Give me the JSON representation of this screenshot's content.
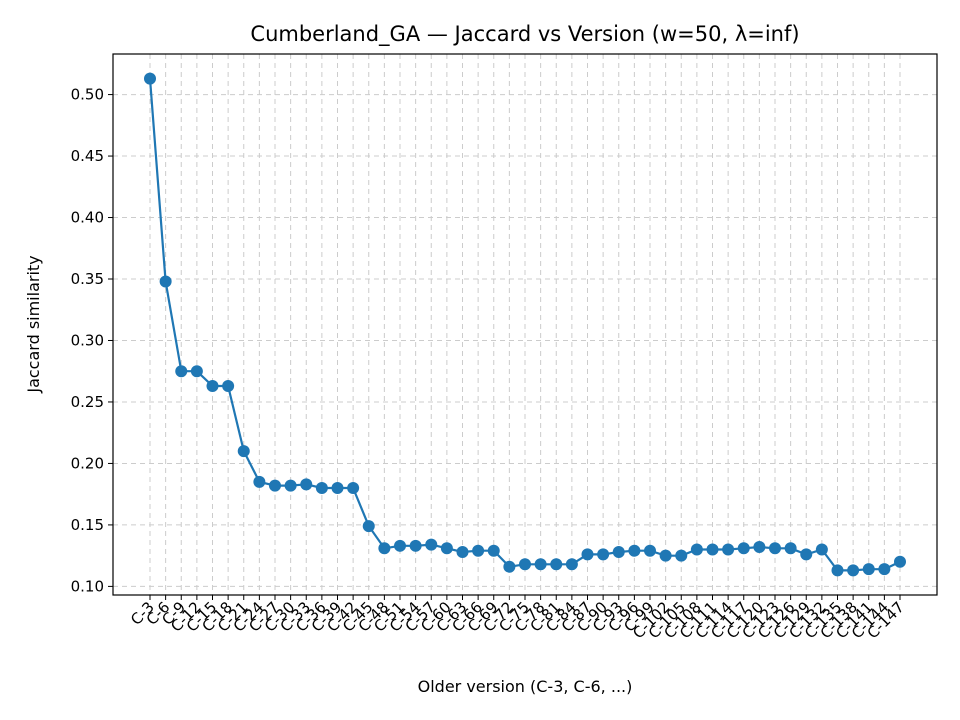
{
  "chart_data": {
    "type": "line",
    "title": "Cumberland_GA — Jaccard vs Version (w=50, λ=inf)",
    "xlabel": "Older version (C-3, C-6, ...)",
    "ylabel": "Jaccard similarity",
    "ylim": [
      0.093,
      0.533
    ],
    "yticks": [
      0.1,
      0.15,
      0.2,
      0.25,
      0.3,
      0.35,
      0.4,
      0.45,
      0.5
    ],
    "grid": true,
    "color": "#1f77b4",
    "categories": [
      "C-3",
      "C-6",
      "C-9",
      "C-12",
      "C-15",
      "C-18",
      "C-21",
      "C-24",
      "C-27",
      "C-30",
      "C-33",
      "C-36",
      "C-39",
      "C-42",
      "C-45",
      "C-48",
      "C-51",
      "C-54",
      "C-57",
      "C-60",
      "C-63",
      "C-66",
      "C-69",
      "C-72",
      "C-75",
      "C-78",
      "C-81",
      "C-84",
      "C-87",
      "C-90",
      "C-93",
      "C-96",
      "C-99",
      "C-102",
      "C-105",
      "C-108",
      "C-111",
      "C-114",
      "C-117",
      "C-120",
      "C-123",
      "C-126",
      "C-129",
      "C-132",
      "C-135",
      "C-138",
      "C-141",
      "C-144",
      "C-147"
    ],
    "values": [
      0.513,
      0.348,
      0.275,
      0.275,
      0.263,
      0.263,
      0.21,
      0.185,
      0.182,
      0.182,
      0.183,
      0.18,
      0.18,
      0.18,
      0.149,
      0.131,
      0.133,
      0.133,
      0.134,
      0.131,
      0.128,
      0.129,
      0.129,
      0.116,
      0.118,
      0.118,
      0.118,
      0.118,
      0.126,
      0.126,
      0.128,
      0.129,
      0.129,
      0.125,
      0.125,
      0.13,
      0.13,
      0.13,
      0.131,
      0.132,
      0.131,
      0.131,
      0.126,
      0.13,
      0.113,
      0.113,
      0.114,
      0.114,
      0.12
    ]
  }
}
